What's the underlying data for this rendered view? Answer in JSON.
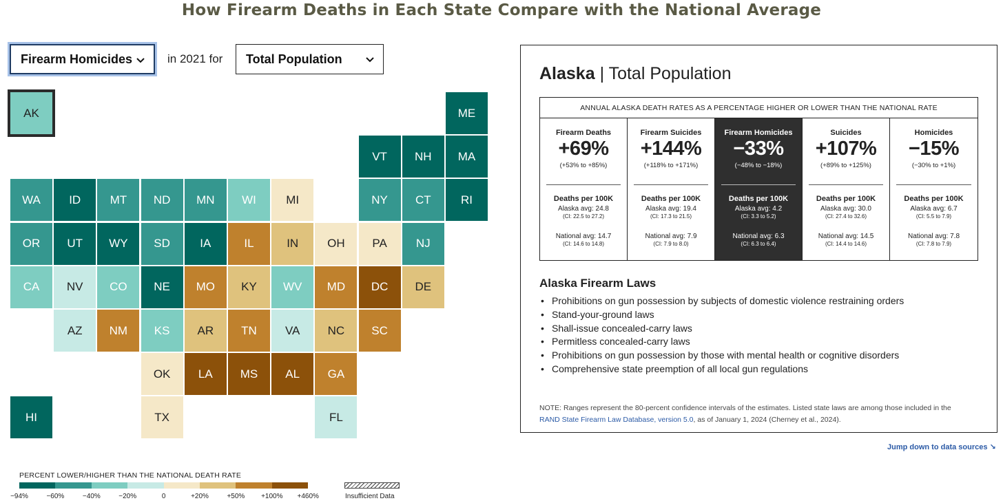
{
  "title": "How Firearm Deaths in Each State Compare with the National Average",
  "controls": {
    "death_type": "Firearm Homicides",
    "connector": "in 2021 for",
    "population": "Total Population"
  },
  "states": [
    {
      "abbr": "AK",
      "color": "#7ecdc1"
    },
    {
      "abbr": "ME",
      "color": "#01665e"
    },
    {
      "abbr": "VT",
      "color": "#01665e"
    },
    {
      "abbr": "NH",
      "color": "#01665e"
    },
    {
      "abbr": "MA",
      "color": "#01665e"
    },
    {
      "abbr": "WA",
      "color": "#35978f"
    },
    {
      "abbr": "ID",
      "color": "#01665e"
    },
    {
      "abbr": "MT",
      "color": "#35978f"
    },
    {
      "abbr": "ND",
      "color": "#35978f"
    },
    {
      "abbr": "MN",
      "color": "#35978f"
    },
    {
      "abbr": "WI",
      "color": "#7ecdc1"
    },
    {
      "abbr": "MI",
      "color": "#f5e8c8"
    },
    {
      "abbr": "NY",
      "color": "#35978f"
    },
    {
      "abbr": "CT",
      "color": "#35978f"
    },
    {
      "abbr": "RI",
      "color": "#01665e"
    },
    {
      "abbr": "OR",
      "color": "#35978f"
    },
    {
      "abbr": "UT",
      "color": "#01665e"
    },
    {
      "abbr": "WY",
      "color": "#01665e"
    },
    {
      "abbr": "SD",
      "color": "#35978f"
    },
    {
      "abbr": "IA",
      "color": "#01665e"
    },
    {
      "abbr": "IL",
      "color": "#bf812d"
    },
    {
      "abbr": "IN",
      "color": "#dfc27d"
    },
    {
      "abbr": "OH",
      "color": "#f5e8c8"
    },
    {
      "abbr": "PA",
      "color": "#f5e8c8"
    },
    {
      "abbr": "NJ",
      "color": "#35978f"
    },
    {
      "abbr": "CA",
      "color": "#7ecdc1"
    },
    {
      "abbr": "NV",
      "color": "#c7eae5"
    },
    {
      "abbr": "CO",
      "color": "#7ecdc1"
    },
    {
      "abbr": "NE",
      "color": "#01665e"
    },
    {
      "abbr": "MO",
      "color": "#bf812d"
    },
    {
      "abbr": "KY",
      "color": "#dfc27d"
    },
    {
      "abbr": "WV",
      "color": "#7ecdc1"
    },
    {
      "abbr": "MD",
      "color": "#bf812d"
    },
    {
      "abbr": "DC",
      "color": "#8c510a"
    },
    {
      "abbr": "DE",
      "color": "#dfc27d"
    },
    {
      "abbr": "AZ",
      "color": "#c7eae5"
    },
    {
      "abbr": "NM",
      "color": "#bf812d"
    },
    {
      "abbr": "KS",
      "color": "#7ecdc1"
    },
    {
      "abbr": "AR",
      "color": "#dfc27d"
    },
    {
      "abbr": "TN",
      "color": "#bf812d"
    },
    {
      "abbr": "VA",
      "color": "#c7eae5"
    },
    {
      "abbr": "NC",
      "color": "#dfc27d"
    },
    {
      "abbr": "SC",
      "color": "#bf812d"
    },
    {
      "abbr": "OK",
      "color": "#f5e8c8"
    },
    {
      "abbr": "LA",
      "color": "#8c510a"
    },
    {
      "abbr": "MS",
      "color": "#8c510a"
    },
    {
      "abbr": "AL",
      "color": "#8c510a"
    },
    {
      "abbr": "GA",
      "color": "#bf812d"
    },
    {
      "abbr": "HI",
      "color": "#01665e"
    },
    {
      "abbr": "TX",
      "color": "#f5e8c8"
    },
    {
      "abbr": "FL",
      "color": "#c7eae5"
    }
  ],
  "selected_state": "AK",
  "legend": {
    "title": "PERCENT LOWER/HIGHER THAN THE NATIONAL DEATH RATE",
    "colors": [
      "#01665e",
      "#35978f",
      "#7ecdc1",
      "#c7eae5",
      "#f5e8c8",
      "#dfc27d",
      "#bf812d",
      "#8c510a"
    ],
    "ticks": [
      "−94%",
      "−60%",
      "−40%",
      "−20%",
      "0",
      "+20%",
      "+50%",
      "+100%",
      "+460%"
    ],
    "insufficient": "Insufficient Data"
  },
  "panel": {
    "state": "Alaska",
    "divider": "|",
    "population": "Total Population",
    "rates_header": "ANNUAL ALASKA DEATH RATES AS A PERCENTAGE HIGHER OR LOWER THAN THE NATIONAL RATE",
    "columns": [
      {
        "name": "Firearm Deaths",
        "pct": "+69%",
        "ci": "(+53% to +85%)",
        "per100k": "Deaths per 100K",
        "state_avg": "Alaska avg: 24.8",
        "state_ci": "(CI: 22.5 to 27.2)",
        "nat_avg": "National avg: 14.7",
        "nat_ci": "(CI: 14.6 to 14.8)"
      },
      {
        "name": "Firearm Suicides",
        "pct": "+144%",
        "ci": "(+118% to +171%)",
        "per100k": "Deaths per 100K",
        "state_avg": "Alaska avg: 19.4",
        "state_ci": "(CI: 17.3 to 21.5)",
        "nat_avg": "National avg: 7.9",
        "nat_ci": "(CI: 7.9 to 8.0)"
      },
      {
        "name": "Firearm Homicides",
        "pct": "−33%",
        "ci": "(−48% to −18%)",
        "per100k": "Deaths per 100K",
        "state_avg": "Alaska avg: 4.2",
        "state_ci": "(CI: 3.3 to 5.2)",
        "nat_avg": "National avg: 6.3",
        "nat_ci": "(CI: 6.3 to 6.4)",
        "active": true
      },
      {
        "name": "Suicides",
        "pct": "+107%",
        "ci": "(+89% to +125%)",
        "per100k": "Deaths per 100K",
        "state_avg": "Alaska avg: 30.0",
        "state_ci": "(CI: 27.4 to 32.6)",
        "nat_avg": "National avg: 14.5",
        "nat_ci": "(CI: 14.4 to 14.6)"
      },
      {
        "name": "Homicides",
        "pct": "−15%",
        "ci": "(−30% to +1%)",
        "per100k": "Deaths per 100K",
        "state_avg": "Alaska avg: 6.7",
        "state_ci": "(CI: 5.5 to 7.9)",
        "nat_avg": "National avg: 7.8",
        "nat_ci": "(CI: 7.8 to 7.9)"
      }
    ],
    "laws_title": "Alaska Firearm Laws",
    "laws": [
      "Prohibitions on gun possession by subjects of domestic violence restraining orders",
      "Stand-your-ground laws",
      "Shall-issue concealed-carry laws",
      "Permitless concealed-carry laws",
      "Prohibitions on gun possession by those with mental health or cognitive disorders",
      "Comprehensive state preemption of all local gun regulations"
    ],
    "note_prefix": "NOTE: Ranges represent the 80-percent confidence intervals of the estimates. Listed state laws are among those included in the",
    "note_link": "RAND State Firearm Law Database, version 5.0",
    "note_suffix": ", as of January 1, 2024 (Cherney et al., 2024)."
  },
  "jump_link": "Jump down to data sources ↘"
}
